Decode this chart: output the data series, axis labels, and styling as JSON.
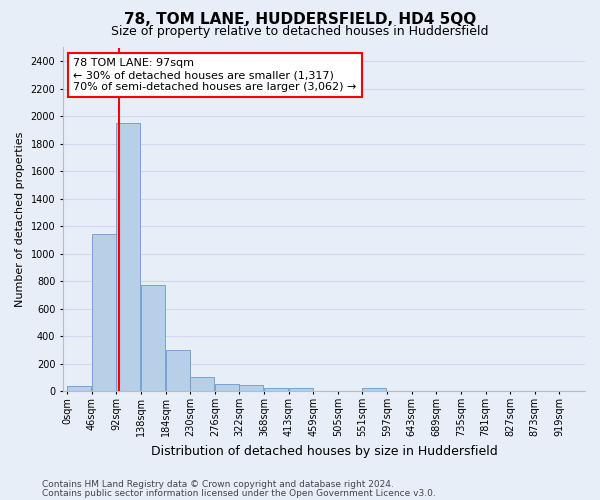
{
  "title": "78, TOM LANE, HUDDERSFIELD, HD4 5QQ",
  "subtitle": "Size of property relative to detached houses in Huddersfield",
  "xlabel": "Distribution of detached houses by size in Huddersfield",
  "ylabel": "Number of detached properties",
  "footnote1": "Contains HM Land Registry data © Crown copyright and database right 2024.",
  "footnote2": "Contains public sector information licensed under the Open Government Licence v3.0.",
  "bin_labels": [
    "0sqm",
    "46sqm",
    "92sqm",
    "138sqm",
    "184sqm",
    "230sqm",
    "276sqm",
    "322sqm",
    "368sqm",
    "413sqm",
    "459sqm",
    "505sqm",
    "551sqm",
    "597sqm",
    "643sqm",
    "689sqm",
    "735sqm",
    "781sqm",
    "827sqm",
    "873sqm",
    "919sqm"
  ],
  "bar_values": [
    40,
    1140,
    1950,
    770,
    300,
    100,
    50,
    42,
    25,
    20,
    0,
    0,
    20,
    0,
    0,
    0,
    0,
    0,
    0,
    0,
    0
  ],
  "bar_color": "#b8cfe8",
  "bar_edge_color": "#6699cc",
  "grid_color": "#d0d8ec",
  "bg_color": "#e8eef8",
  "property_line_x": 97,
  "property_line_color": "red",
  "annotation_text": "78 TOM LANE: 97sqm\n← 30% of detached houses are smaller (1,317)\n70% of semi-detached houses are larger (3,062) →",
  "annotation_box_color": "white",
  "annotation_box_edge": "red",
  "ylim": [
    0,
    2500
  ],
  "yticks": [
    0,
    200,
    400,
    600,
    800,
    1000,
    1200,
    1400,
    1600,
    1800,
    2000,
    2200,
    2400
  ],
  "bin_width": 46,
  "title_fontsize": 11,
  "subtitle_fontsize": 9,
  "xlabel_fontsize": 9,
  "ylabel_fontsize": 8,
  "tick_fontsize": 7,
  "annot_fontsize": 8,
  "footnote_fontsize": 6.5
}
